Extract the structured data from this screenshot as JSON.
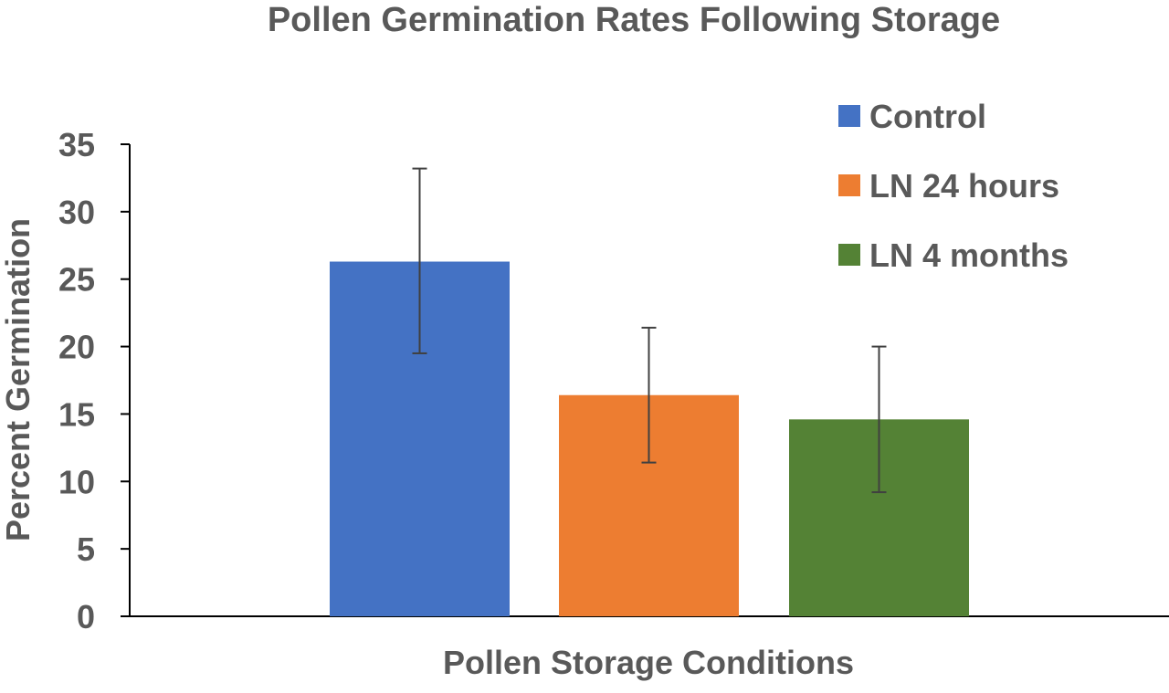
{
  "chart_data": {
    "type": "bar",
    "title": "Pollen Germination Rates Following Storage",
    "xlabel": "Pollen Storage Conditions",
    "ylabel": "Percent Germination",
    "ylim": [
      0,
      35
    ],
    "yticks": [
      0,
      5,
      10,
      15,
      20,
      25,
      30,
      35
    ],
    "grid": false,
    "legend_position": "top-right",
    "series": [
      {
        "name": "Control",
        "value": 26.3,
        "error_low": 19.5,
        "error_high": 33.2,
        "color": "#4472C4"
      },
      {
        "name": "LN 24 hours",
        "value": 16.4,
        "error_low": 11.4,
        "error_high": 21.4,
        "color": "#ED7D31"
      },
      {
        "name": "LN 4 months",
        "value": 14.6,
        "error_low": 9.2,
        "error_high": 20.0,
        "color": "#548235"
      }
    ]
  }
}
